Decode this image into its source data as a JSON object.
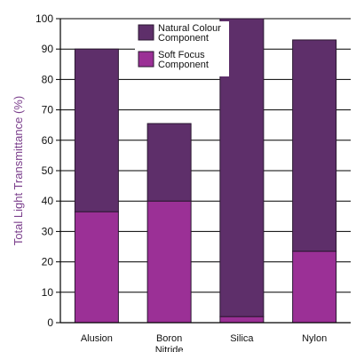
{
  "chart_data": {
    "type": "bar",
    "stacked": true,
    "title": "",
    "xlabel": "",
    "ylabel": "Total Light Transmittance (%)",
    "ylim": [
      0,
      100
    ],
    "yticks": [
      0,
      10,
      20,
      30,
      40,
      50,
      60,
      70,
      80,
      90,
      100
    ],
    "grid": "horizontal",
    "legend_position": "top-center",
    "categories": [
      [
        "Alusion"
      ],
      [
        "Boron",
        "Nitride"
      ],
      [
        "Silica"
      ],
      [
        "Nylon"
      ]
    ],
    "series": [
      {
        "name": [
          "Soft Focus",
          "Component"
        ],
        "color": "#9b3096",
        "values": [
          36.5,
          40,
          2,
          23.5
        ]
      },
      {
        "name": [
          "Natural Colour",
          "Component"
        ],
        "color": "#5e2f6a",
        "values": [
          53.5,
          25.5,
          98,
          69.5
        ]
      }
    ],
    "legend_order": [
      1,
      0
    ]
  }
}
